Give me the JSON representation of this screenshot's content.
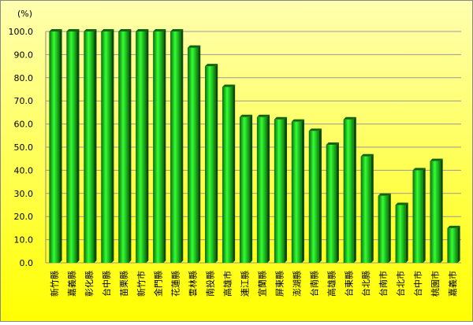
{
  "chart_data": {
    "type": "bar",
    "y_label": "(%)",
    "categories": [
      "新竹縣",
      "嘉義縣",
      "彰化縣",
      "台中縣",
      "苗栗縣",
      "新竹市",
      "金門縣",
      "花蓮縣",
      "雲林縣",
      "南投縣",
      "高雄市",
      "連江縣",
      "宜蘭縣",
      "屏東縣",
      "澎湖縣",
      "台南縣",
      "高雄縣",
      "台東縣",
      "台北縣",
      "台南市",
      "台北市",
      "台中市",
      "桃園市",
      "嘉義市"
    ],
    "values": [
      100,
      100,
      100,
      100,
      100,
      100,
      100,
      100,
      93,
      85,
      76,
      63,
      63,
      62,
      61,
      57,
      51,
      62,
      46,
      29,
      25,
      40,
      44,
      15
    ],
    "color": "#22cc22",
    "ylim": [
      0,
      100
    ],
    "yticks": [
      {
        "value": 0,
        "label": "0.0"
      },
      {
        "value": 10,
        "label": "10.0"
      },
      {
        "value": 20,
        "label": "20.0"
      },
      {
        "value": 30,
        "label": "30.0"
      },
      {
        "value": 40,
        "label": "40.0"
      },
      {
        "value": 50,
        "label": "50.0"
      },
      {
        "value": 60,
        "label": "60.0"
      },
      {
        "value": 70,
        "label": "70.0"
      },
      {
        "value": 80,
        "label": "80.0"
      },
      {
        "value": 90,
        "label": "90.0"
      },
      {
        "value": 100,
        "label": "100.0"
      }
    ],
    "grid": true
  }
}
